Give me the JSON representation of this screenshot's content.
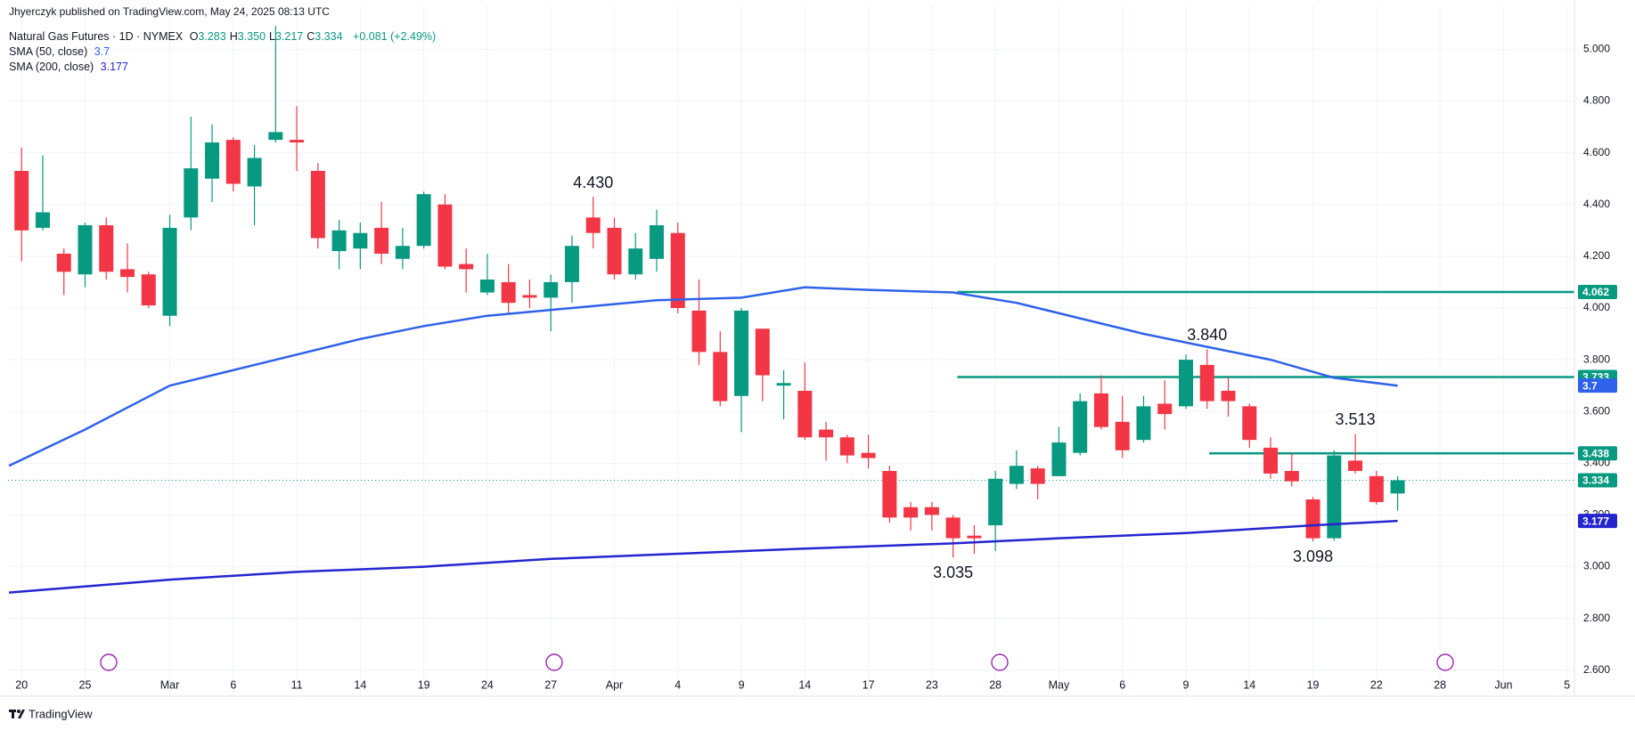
{
  "header": {
    "publisher": "Jhyerczyk published on TradingView.com, May 24, 2025 08:13 UTC",
    "symbol": "Natural Gas Futures · 1D · NYMEX",
    "ohlc": [
      {
        "key": "O",
        "value": "3.283"
      },
      {
        "key": "H",
        "value": "3.350"
      },
      {
        "key": "L",
        "value": "3.217"
      },
      {
        "key": "C",
        "value": "3.334"
      }
    ],
    "change": "+0.081 (+2.49%)"
  },
  "footer": {
    "brand": "TradingView"
  },
  "chart_data": {
    "type": "candlestick",
    "up_color": "#089981",
    "down_color": "#f23645",
    "open": [
      4.53,
      4.31,
      4.21,
      4.13,
      4.32,
      4.15,
      4.13,
      3.97,
      4.35,
      4.5,
      4.65,
      4.47,
      4.65,
      4.65,
      4.53,
      4.22,
      4.23,
      4.31,
      4.19,
      4.24,
      4.4,
      4.17,
      4.06,
      4.1,
      4.05,
      4.04,
      4.1,
      4.35,
      4.31,
      4.13,
      4.19,
      4.29,
      3.99,
      3.83,
      3.66,
      3.92,
      3.7,
      3.68,
      3.53,
      3.5,
      3.44,
      3.37,
      3.23,
      3.23,
      3.19,
      3.12,
      3.16,
      3.32,
      3.38,
      3.35,
      3.44,
      3.67,
      3.56,
      3.49,
      3.63,
      3.62,
      3.78,
      3.68,
      3.62,
      3.46,
      3.37,
      3.26,
      3.11,
      3.41,
      3.35,
      3.283
    ],
    "high": [
      4.62,
      4.59,
      4.23,
      4.33,
      4.35,
      4.25,
      4.14,
      4.36,
      4.74,
      4.71,
      4.66,
      4.63,
      5.09,
      4.78,
      4.56,
      4.34,
      4.33,
      4.41,
      4.31,
      4.45,
      4.44,
      4.23,
      4.21,
      4.17,
      4.11,
      4.13,
      4.28,
      4.43,
      4.35,
      4.29,
      4.38,
      4.33,
      4.11,
      3.91,
      4.0,
      3.92,
      3.76,
      3.79,
      3.56,
      3.51,
      3.51,
      3.39,
      3.25,
      3.25,
      3.2,
      3.16,
      3.37,
      3.45,
      3.39,
      3.54,
      3.67,
      3.74,
      3.66,
      3.66,
      3.72,
      3.82,
      3.84,
      3.73,
      3.63,
      3.5,
      3.44,
      3.27,
      3.45,
      3.513,
      3.37,
      3.35
    ],
    "low": [
      4.18,
      4.3,
      4.05,
      4.08,
      4.11,
      4.06,
      4.0,
      3.93,
      4.3,
      4.41,
      4.45,
      4.32,
      4.64,
      4.53,
      4.23,
      4.15,
      4.15,
      4.17,
      4.15,
      4.23,
      4.15,
      4.06,
      4.05,
      3.98,
      4.0,
      3.91,
      4.02,
      4.23,
      4.11,
      4.11,
      4.14,
      3.98,
      3.78,
      3.62,
      3.52,
      3.64,
      3.57,
      3.49,
      3.41,
      3.4,
      3.38,
      3.17,
      3.14,
      3.14,
      3.035,
      3.05,
      3.06,
      3.3,
      3.26,
      3.35,
      3.43,
      3.53,
      3.42,
      3.48,
      3.53,
      3.61,
      3.61,
      3.58,
      3.46,
      3.34,
      3.31,
      3.098,
      3.1,
      3.36,
      3.24,
      3.217
    ],
    "close": [
      4.3,
      4.37,
      4.14,
      4.32,
      4.14,
      4.12,
      4.01,
      4.31,
      4.54,
      4.64,
      4.48,
      4.58,
      4.68,
      4.64,
      4.27,
      4.3,
      4.29,
      4.21,
      4.24,
      4.44,
      4.16,
      4.15,
      4.11,
      4.02,
      4.04,
      4.1,
      4.24,
      4.29,
      4.13,
      4.23,
      4.32,
      4.0,
      3.83,
      3.64,
      3.99,
      3.74,
      3.71,
      3.5,
      3.5,
      3.43,
      3.42,
      3.19,
      3.19,
      3.2,
      3.11,
      3.11,
      3.34,
      3.39,
      3.32,
      3.48,
      3.64,
      3.54,
      3.45,
      3.62,
      3.59,
      3.8,
      3.64,
      3.64,
      3.49,
      3.36,
      3.33,
      3.11,
      3.43,
      3.37,
      3.25,
      3.334
    ],
    "sma": [
      {
        "name": "SMA (50, close)",
        "legend_value": "3.7",
        "color": "#2f62ea",
        "x": [
          -0.6,
          3,
          7,
          13,
          16,
          19,
          22,
          26,
          30,
          34,
          37,
          40,
          44,
          47,
          50,
          53,
          56,
          59,
          62,
          65
        ],
        "values": [
          3.39,
          3.53,
          3.7,
          3.82,
          3.88,
          3.93,
          3.97,
          4.0,
          4.03,
          4.04,
          4.08,
          4.07,
          4.06,
          4.02,
          3.96,
          3.9,
          3.85,
          3.8,
          3.73,
          3.7
        ]
      },
      {
        "name": "SMA (200, close)",
        "legend_value": "3.177",
        "color": "#2525d0",
        "x": [
          -0.6,
          7,
          13,
          19,
          25,
          31,
          37,
          44,
          49,
          55,
          61,
          65
        ],
        "values": [
          2.9,
          2.95,
          2.98,
          3.0,
          3.03,
          3.05,
          3.07,
          3.09,
          3.11,
          3.13,
          3.16,
          3.177
        ]
      }
    ],
    "levels": [
      {
        "value": 4.062,
        "label": "4.062",
        "from": 44.2
      },
      {
        "value": 3.733,
        "label": "3.733",
        "from": 44.2
      },
      {
        "value": 3.438,
        "label": "3.438",
        "from": 56.1
      }
    ],
    "level_color": "#089981",
    "last_price": {
      "value": 3.334,
      "label": "3.334"
    },
    "annotations": [
      {
        "x": 27,
        "value": 4.43,
        "label": "4.430"
      },
      {
        "x": 56,
        "value": 3.84,
        "label": "3.840"
      },
      {
        "x": 63,
        "value": 3.513,
        "label": "3.513"
      },
      {
        "x": 44,
        "value": 3.035,
        "label": "3.035"
      },
      {
        "x": 61,
        "value": 3.098,
        "label": "3.098"
      }
    ],
    "xlim": [
      -0.64,
      73.35
    ],
    "xticks": [
      {
        "value": 0,
        "label": "20"
      },
      {
        "value": 3,
        "label": "25"
      },
      {
        "value": 7,
        "label": "Mar"
      },
      {
        "value": 10,
        "label": "6"
      },
      {
        "value": 13,
        "label": "11"
      },
      {
        "value": 16,
        "label": "14"
      },
      {
        "value": 19,
        "label": "19"
      },
      {
        "value": 22,
        "label": "24"
      },
      {
        "value": 25,
        "label": "27"
      },
      {
        "value": 28,
        "label": "Apr"
      },
      {
        "value": 31,
        "label": "4"
      },
      {
        "value": 34,
        "label": "9"
      },
      {
        "value": 37,
        "label": "14"
      },
      {
        "value": 40,
        "label": "17"
      },
      {
        "value": 43,
        "label": "23"
      },
      {
        "value": 46,
        "label": "28"
      },
      {
        "value": 49,
        "label": "May"
      },
      {
        "value": 52,
        "label": "6"
      },
      {
        "value": 55,
        "label": "9"
      },
      {
        "value": 58,
        "label": "14"
      },
      {
        "value": 61,
        "label": "19"
      },
      {
        "value": 64,
        "label": "22"
      },
      {
        "value": 67,
        "label": "28"
      },
      {
        "value": 70,
        "label": "Jun"
      },
      {
        "value": 73,
        "label": "5"
      }
    ],
    "ylim": [
      2.58,
      5.17
    ],
    "yticks": [
      {
        "value": 2.6,
        "label": "2.600"
      },
      {
        "value": 2.8,
        "label": "2.800"
      },
      {
        "value": 3,
        "label": "3.000"
      },
      {
        "value": 3.2,
        "label": "3.200"
      },
      {
        "value": 3.4,
        "label": "3.400"
      },
      {
        "value": 3.6,
        "label": "3.600"
      },
      {
        "value": 3.8,
        "label": "3.800"
      },
      {
        "value": 4,
        "label": "4.000"
      },
      {
        "value": 4.2,
        "label": "4.200"
      },
      {
        "value": 4.4,
        "label": "4.400"
      },
      {
        "value": 4.6,
        "label": "4.600"
      },
      {
        "value": 4.8,
        "label": "4.800"
      },
      {
        "value": 5,
        "label": "5.000"
      }
    ],
    "grid": true
  }
}
